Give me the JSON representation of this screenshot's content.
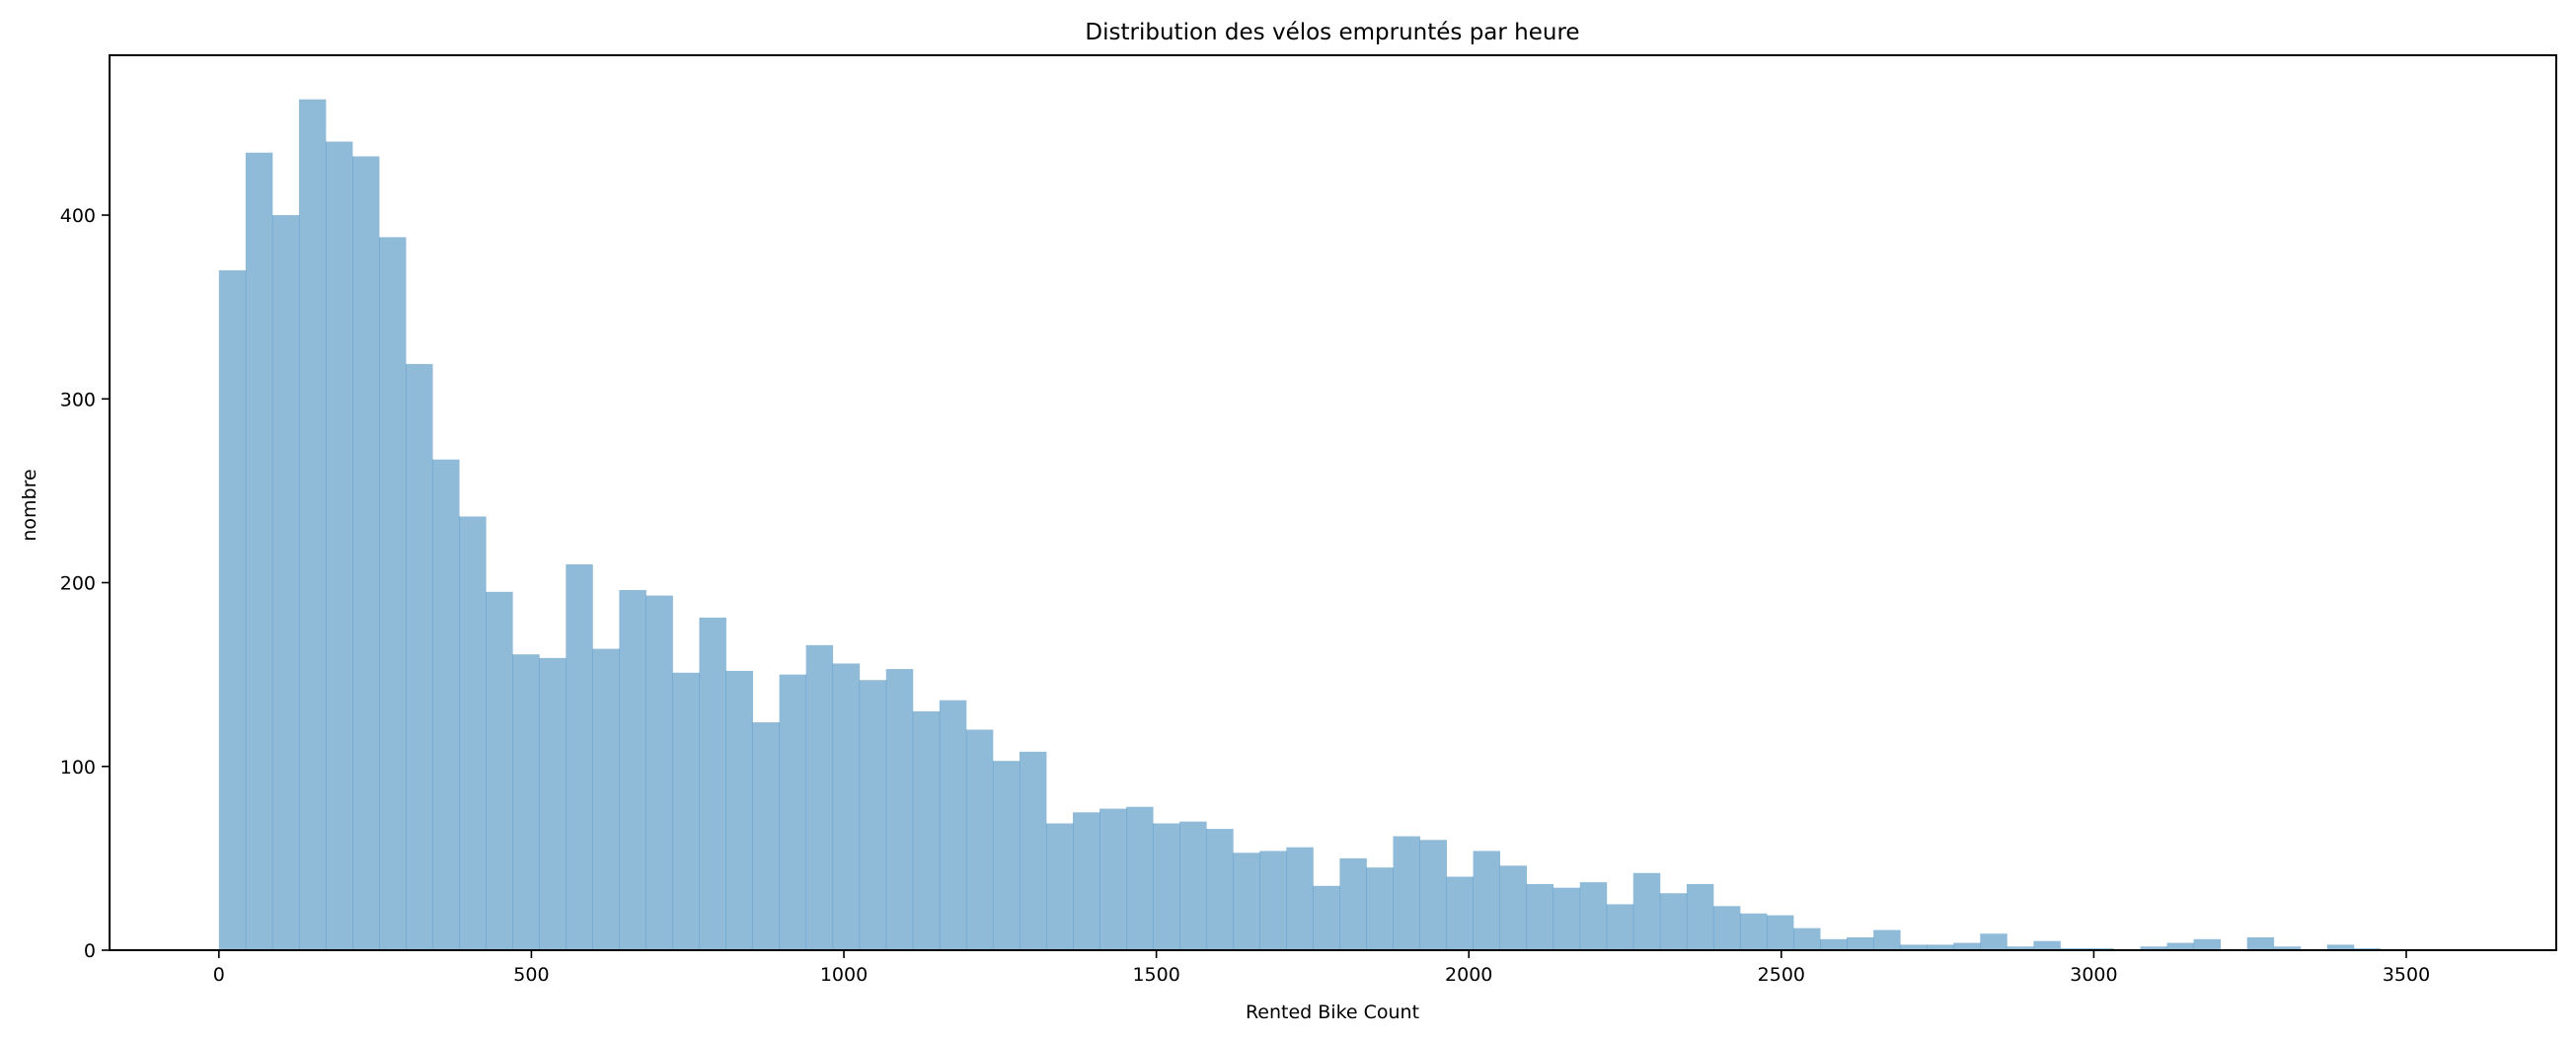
{
  "chart_data": {
    "type": "bar",
    "subtype": "histogram",
    "title": "Distribution des vélos empruntés par heure",
    "xlabel": "Rented Bike Count",
    "ylabel": "nombre",
    "xlim": [
      -175,
      3740
    ],
    "ylim": [
      0,
      487
    ],
    "xticks": [
      0,
      500,
      1000,
      1500,
      2000,
      2500,
      3000,
      3500
    ],
    "yticks": [
      0,
      100,
      200,
      300,
      400
    ],
    "grid": false,
    "legend": "none",
    "bar_color": "#1f77b4",
    "bar_opacity": 0.5,
    "bin_start": 0,
    "bin_width": 42.7,
    "counts": [
      370,
      434,
      400,
      463,
      440,
      432,
      388,
      319,
      267,
      236,
      195,
      161,
      159,
      210,
      164,
      196,
      193,
      151,
      181,
      152,
      124,
      150,
      166,
      156,
      147,
      153,
      130,
      136,
      120,
      103,
      108,
      69,
      75,
      77,
      78,
      69,
      70,
      66,
      53,
      54,
      56,
      35,
      50,
      45,
      62,
      60,
      40,
      54,
      46,
      36,
      34,
      37,
      25,
      42,
      31,
      36,
      24,
      20,
      19,
      12,
      6,
      7,
      11,
      3,
      3,
      4,
      9,
      2,
      5,
      1,
      1,
      0,
      2,
      4,
      6,
      0,
      7,
      2,
      0,
      3,
      1
    ]
  }
}
